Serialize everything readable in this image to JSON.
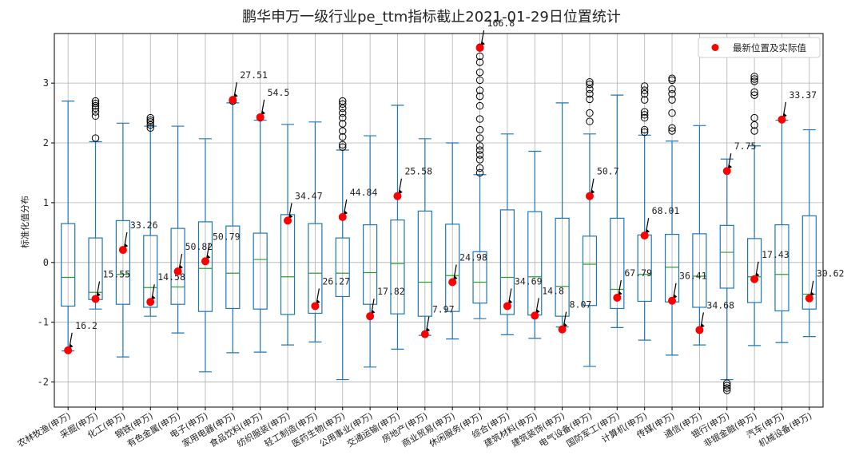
{
  "chart_data": {
    "type": "box",
    "title": "鹏华申万一级行业pe_ttm指标截止2021-01-29日位置统计",
    "ylabel": "标准化值分布",
    "xlabel": "",
    "ylim": [
      -2.42,
      3.83
    ],
    "yticks": [
      -2,
      -1,
      0,
      1,
      2,
      3
    ],
    "grid": true,
    "legend": {
      "label": "最新位置及实际值",
      "placement": "top-right"
    },
    "colors": {
      "box": "#1f77b4",
      "median": "#2ca02c",
      "marker": "#ff0000",
      "outlier": "#000000"
    },
    "categories": [
      "农林牧渔(申万)",
      "采掘(申万)",
      "化工(申万)",
      "钢铁(申万)",
      "有色金属(申万)",
      "电子(申万)",
      "家用电器(申万)",
      "食品饮料(申万)",
      "纺织服装(申万)",
      "轻工制造(申万)",
      "医药生物(申万)",
      "公用事业(申万)",
      "交通运输(申万)",
      "房地产(申万)",
      "商业贸易(申万)",
      "休闲服务(申万)",
      "综合(申万)",
      "建筑材料(申万)",
      "建筑装饰(申万)",
      "电气设备(申万)",
      "国防军工(申万)",
      "计算机(申万)",
      "传媒(申万)",
      "通信(申万)",
      "银行(申万)",
      "非银金融(申万)",
      "汽车(申万)",
      "机械设备(申万)"
    ],
    "boxes": [
      {
        "q1": -0.73,
        "median": -0.25,
        "q3": 0.65,
        "whislo": -1.48,
        "whishi": 2.7,
        "fliers": []
      },
      {
        "q1": -0.62,
        "median": -0.5,
        "q3": 0.41,
        "whislo": -0.78,
        "whishi": 2.02,
        "fliers": [
          2.08,
          2.45,
          2.52,
          2.58,
          2.62,
          2.66,
          2.7
        ]
      },
      {
        "q1": -0.7,
        "median": -0.2,
        "q3": 0.7,
        "whislo": -1.58,
        "whishi": 2.33,
        "fliers": []
      },
      {
        "q1": -0.75,
        "median": -0.42,
        "q3": 0.45,
        "whislo": -0.9,
        "whishi": 2.28,
        "fliers": [
          2.25,
          2.3,
          2.35,
          2.38,
          2.42
        ]
      },
      {
        "q1": -0.7,
        "median": -0.41,
        "q3": 0.57,
        "whislo": -1.18,
        "whishi": 2.28,
        "fliers": []
      },
      {
        "q1": -0.82,
        "median": -0.1,
        "q3": 0.68,
        "whislo": -1.83,
        "whishi": 2.07,
        "fliers": []
      },
      {
        "q1": -0.77,
        "median": -0.18,
        "q3": 0.61,
        "whislo": -1.51,
        "whishi": 2.67,
        "fliers": [
          2.7
        ]
      },
      {
        "q1": -0.78,
        "median": 0.05,
        "q3": 0.49,
        "whislo": -1.5,
        "whishi": 2.38,
        "fliers": [
          2.42
        ]
      },
      {
        "q1": -0.87,
        "median": -0.24,
        "q3": 0.8,
        "whislo": -1.38,
        "whishi": 2.31,
        "fliers": []
      },
      {
        "q1": -0.85,
        "median": -0.18,
        "q3": 0.65,
        "whislo": -1.33,
        "whishi": 2.35,
        "fliers": []
      },
      {
        "q1": -0.57,
        "median": -0.18,
        "q3": 0.41,
        "whislo": -1.96,
        "whishi": 1.88,
        "fliers": [
          1.93,
          1.97,
          2.1,
          2.2,
          2.32,
          2.42,
          2.5,
          2.58,
          2.65,
          2.7
        ]
      },
      {
        "q1": -0.7,
        "median": -0.17,
        "q3": 0.63,
        "whislo": -1.75,
        "whishi": 2.12,
        "fliers": []
      },
      {
        "q1": -0.86,
        "median": -0.02,
        "q3": 0.71,
        "whislo": -1.45,
        "whishi": 2.63,
        "fliers": []
      },
      {
        "q1": -0.9,
        "median": -0.33,
        "q3": 0.86,
        "whislo": -1.22,
        "whishi": 2.07,
        "fliers": []
      },
      {
        "q1": -0.82,
        "median": -0.22,
        "q3": 0.64,
        "whislo": -1.28,
        "whishi": 2.0,
        "fliers": []
      },
      {
        "q1": -0.68,
        "median": -0.33,
        "q3": 0.18,
        "whislo": -0.94,
        "whishi": 1.47,
        "fliers": [
          1.5,
          1.58,
          1.72,
          1.8,
          1.88,
          1.95,
          2.08,
          2.22,
          2.4,
          2.62,
          2.78,
          2.88,
          3.05,
          3.18,
          3.35,
          3.45,
          3.6
        ]
      },
      {
        "q1": -0.87,
        "median": -0.25,
        "q3": 0.88,
        "whislo": -1.21,
        "whishi": 2.15,
        "fliers": []
      },
      {
        "q1": -0.88,
        "median": -0.24,
        "q3": 0.85,
        "whislo": -1.27,
        "whishi": 1.86,
        "fliers": []
      },
      {
        "q1": -0.9,
        "median": -0.4,
        "q3": 0.74,
        "whislo": -1.08,
        "whishi": 2.67,
        "fliers": []
      },
      {
        "q1": -0.72,
        "median": -0.03,
        "q3": 0.44,
        "whislo": -1.74,
        "whishi": 2.15,
        "fliers": [
          2.36,
          2.5,
          2.73,
          2.82,
          2.9,
          2.98,
          3.02
        ]
      },
      {
        "q1": -0.77,
        "median": -0.45,
        "q3": 0.74,
        "whislo": -1.09,
        "whishi": 2.8,
        "fliers": []
      },
      {
        "q1": -0.65,
        "median": -0.2,
        "q3": 0.46,
        "whislo": -1.3,
        "whishi": 2.13,
        "fliers": [
          2.18,
          2.22,
          2.42,
          2.47,
          2.52,
          2.72,
          2.82,
          2.88,
          2.95
        ]
      },
      {
        "q1": -0.66,
        "median": -0.08,
        "q3": 0.47,
        "whislo": -1.55,
        "whishi": 2.03,
        "fliers": [
          2.2,
          2.25,
          2.5,
          2.72,
          2.82,
          2.9,
          3.05,
          3.08
        ]
      },
      {
        "q1": -0.75,
        "median": -0.23,
        "q3": 0.48,
        "whislo": -1.38,
        "whishi": 2.29,
        "fliers": []
      },
      {
        "q1": -0.43,
        "median": 0.17,
        "q3": 0.62,
        "whislo": -1.96,
        "whishi": 1.73,
        "fliers": [
          -2.02,
          -2.06,
          -2.1,
          -2.14
        ]
      },
      {
        "q1": -0.67,
        "median": -0.24,
        "q3": 0.4,
        "whislo": -1.39,
        "whishi": 1.95,
        "fliers": [
          2.2,
          2.3,
          2.42,
          2.8,
          2.85,
          3.03,
          3.07,
          3.11
        ]
      },
      {
        "q1": -0.81,
        "median": -0.2,
        "q3": 0.63,
        "whislo": -1.34,
        "whishi": 2.38,
        "fliers": []
      },
      {
        "q1": -0.78,
        "median": -0.53,
        "q3": 0.78,
        "whislo": -1.24,
        "whishi": 2.22,
        "fliers": []
      }
    ],
    "latest": {
      "positions": [
        -1.47,
        -0.61,
        0.21,
        -0.66,
        -0.15,
        0.02,
        2.72,
        2.43,
        0.7,
        -0.73,
        0.76,
        -0.9,
        1.11,
        -1.2,
        -0.33,
        3.59,
        -0.73,
        -0.89,
        -1.12,
        1.11,
        -0.59,
        0.45,
        -0.64,
        -1.13,
        1.53,
        -0.28,
        2.39,
        -0.6
      ],
      "labels": [
        "16.2",
        "15.55",
        "33.26",
        "14.58",
        "50.82",
        "50.79",
        "27.51",
        "54.5",
        "34.47",
        "26.27",
        "44.84",
        "17.82",
        "25.58",
        "7.97",
        "24.98",
        "166.8",
        "34.69",
        "14.8",
        "8.07",
        "50.7",
        "67.79",
        "68.01",
        "36.41",
        "34.68",
        "7.75",
        "17.43",
        "33.37",
        "30.62"
      ]
    }
  }
}
